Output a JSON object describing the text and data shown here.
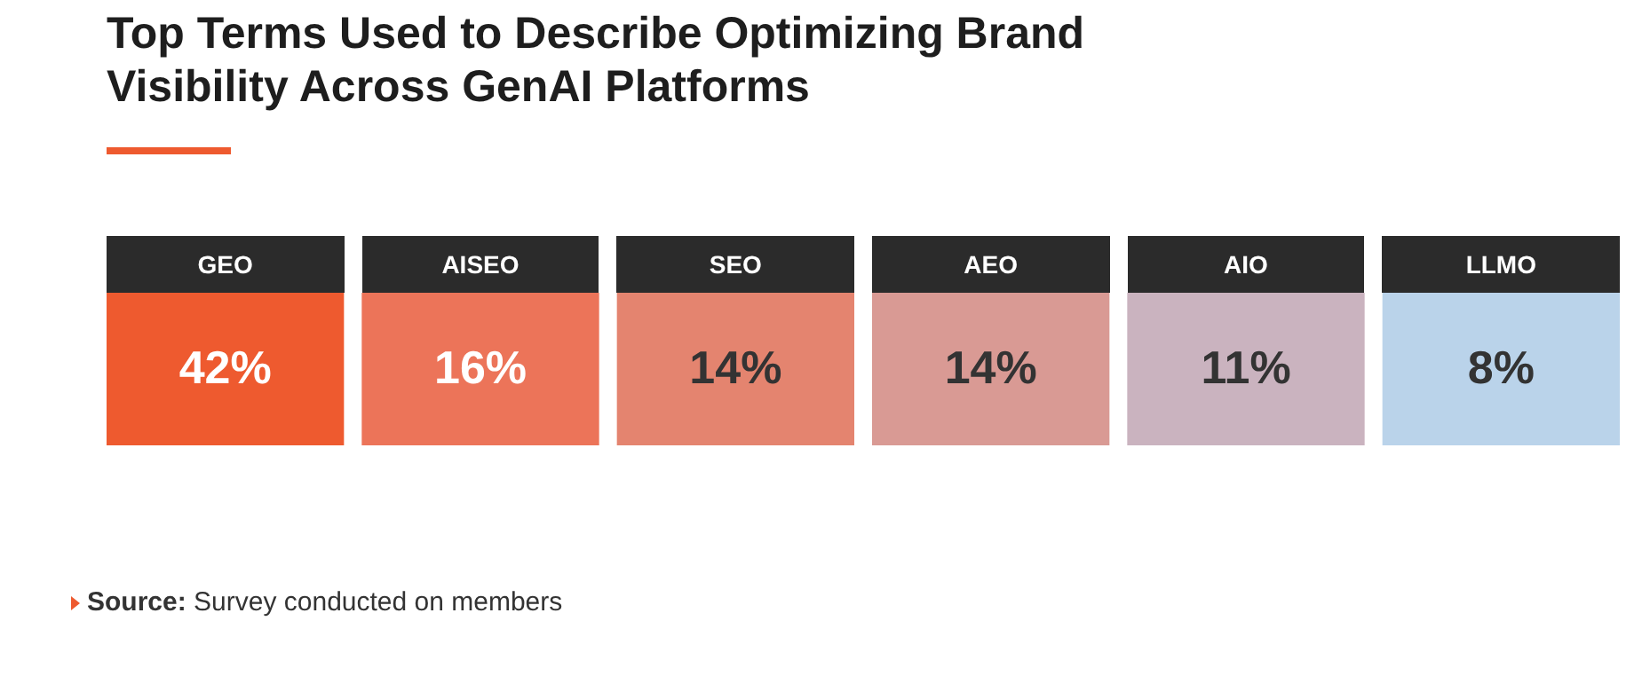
{
  "chart_data": {
    "type": "other",
    "title": "Top Terms Used to Describe Optimizing Brand Visibility Across GenAI Platforms",
    "categories": [
      "GEO",
      "AISEO",
      "SEO",
      "AEO",
      "AIO",
      "LLMO"
    ],
    "values": [
      42,
      16,
      14,
      14,
      11,
      8
    ],
    "value_labels": [
      "42%",
      "16%",
      "14%",
      "14%",
      "11%",
      "8%"
    ],
    "annotations": [
      "Source: Survey conducted on members"
    ]
  }
}
